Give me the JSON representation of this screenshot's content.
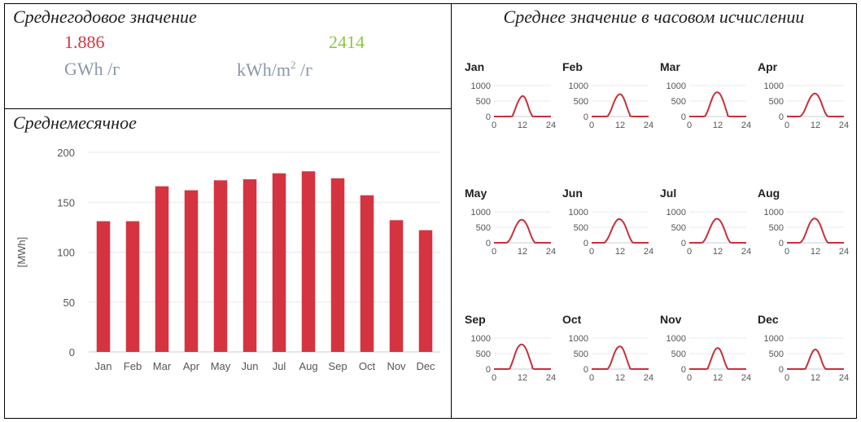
{
  "annual": {
    "title": "Среднегодовое значение",
    "energy_value": "1.886",
    "energy_unit": "GWh /г",
    "specific_value": "2414",
    "specific_unit_prefix": "kWh/m",
    "specific_unit_sup": "2",
    "specific_unit_suffix": " /г",
    "colors": {
      "energy": "#d63340",
      "specific": "#8dc63f",
      "unit": "#8a96a8"
    }
  },
  "monthly": {
    "title": "Среднемесячное"
  },
  "hourly": {
    "title": "Среднее значение в часовом исчислении"
  },
  "chart_data": [
    {
      "type": "bar",
      "categories": [
        "Jan",
        "Feb",
        "Mar",
        "Apr",
        "May",
        "Jun",
        "Jul",
        "Aug",
        "Sep",
        "Oct",
        "Nov",
        "Dec"
      ],
      "values": [
        131,
        131,
        166,
        162,
        172,
        173,
        179,
        181,
        174,
        157,
        132,
        122
      ],
      "ylabel": "[MWh]",
      "ylim": [
        0,
        200
      ],
      "yticks": [
        0,
        50,
        100,
        150,
        200
      ],
      "grid": true,
      "color": "#d63340"
    },
    {
      "type": "line",
      "panels": [
        {
          "title": "Jan",
          "x": [
            0,
            7,
            8,
            9,
            10,
            11,
            12,
            13,
            14,
            15,
            16,
            17,
            24
          ],
          "y": [
            0,
            0,
            60,
            250,
            450,
            590,
            660,
            610,
            430,
            200,
            40,
            0,
            0
          ]
        },
        {
          "title": "Feb",
          "x": [
            0,
            6,
            7,
            8,
            9,
            10,
            11,
            12,
            13,
            14,
            15,
            16,
            17,
            24
          ],
          "y": [
            0,
            0,
            40,
            180,
            380,
            560,
            680,
            720,
            660,
            500,
            280,
            80,
            0,
            0
          ]
        },
        {
          "title": "Mar",
          "x": [
            0,
            6,
            7,
            8,
            9,
            10,
            11,
            12,
            13,
            14,
            15,
            16,
            17,
            24
          ],
          "y": [
            0,
            0,
            60,
            230,
            450,
            650,
            760,
            780,
            720,
            560,
            340,
            110,
            0,
            0
          ]
        },
        {
          "title": "Apr",
          "x": [
            0,
            5,
            6,
            7,
            8,
            9,
            10,
            11,
            12,
            13,
            14,
            15,
            16,
            17,
            18,
            24
          ],
          "y": [
            0,
            0,
            30,
            130,
            300,
            480,
            630,
            720,
            740,
            680,
            540,
            340,
            140,
            20,
            0,
            0
          ]
        },
        {
          "title": "May",
          "x": [
            0,
            5,
            6,
            7,
            8,
            9,
            10,
            11,
            12,
            13,
            14,
            15,
            16,
            17,
            18,
            24
          ],
          "y": [
            0,
            0,
            40,
            150,
            320,
            500,
            640,
            730,
            740,
            680,
            550,
            360,
            160,
            30,
            0,
            0
          ]
        },
        {
          "title": "Jun",
          "x": [
            0,
            5,
            6,
            7,
            8,
            9,
            10,
            11,
            12,
            13,
            14,
            15,
            16,
            17,
            18,
            24
          ],
          "y": [
            0,
            0,
            50,
            170,
            340,
            520,
            660,
            750,
            760,
            700,
            570,
            380,
            180,
            40,
            0,
            0
          ]
        },
        {
          "title": "Jul",
          "x": [
            0,
            5,
            6,
            7,
            8,
            9,
            10,
            11,
            12,
            13,
            14,
            15,
            16,
            17,
            18,
            24
          ],
          "y": [
            0,
            0,
            40,
            160,
            340,
            520,
            670,
            760,
            770,
            710,
            580,
            390,
            180,
            40,
            0,
            0
          ]
        },
        {
          "title": "Aug",
          "x": [
            0,
            5,
            6,
            7,
            8,
            9,
            10,
            11,
            12,
            13,
            14,
            15,
            16,
            17,
            18,
            24
          ],
          "y": [
            0,
            0,
            30,
            140,
            320,
            520,
            680,
            770,
            780,
            720,
            580,
            380,
            170,
            30,
            0,
            0
          ]
        },
        {
          "title": "Sep",
          "x": [
            0,
            6,
            7,
            8,
            9,
            10,
            11,
            12,
            13,
            14,
            15,
            16,
            17,
            24
          ],
          "y": [
            0,
            0,
            80,
            280,
            510,
            690,
            780,
            790,
            720,
            560,
            340,
            120,
            0,
            0
          ]
        },
        {
          "title": "Oct",
          "x": [
            0,
            6,
            7,
            8,
            9,
            10,
            11,
            12,
            13,
            14,
            15,
            16,
            17,
            24
          ],
          "y": [
            0,
            0,
            30,
            170,
            390,
            580,
            700,
            730,
            670,
            500,
            270,
            70,
            0,
            0
          ]
        },
        {
          "title": "Nov",
          "x": [
            0,
            7,
            8,
            9,
            10,
            11,
            12,
            13,
            14,
            15,
            16,
            17,
            24
          ],
          "y": [
            0,
            0,
            70,
            270,
            480,
            630,
            680,
            620,
            440,
            210,
            40,
            0,
            0
          ]
        },
        {
          "title": "Dec",
          "x": [
            0,
            7,
            8,
            9,
            10,
            11,
            12,
            13,
            14,
            15,
            16,
            17,
            24
          ],
          "y": [
            0,
            0,
            50,
            230,
            430,
            580,
            630,
            570,
            400,
            180,
            30,
            0,
            0
          ]
        }
      ],
      "xlim": [
        0,
        24
      ],
      "xticks": [
        0,
        12,
        24
      ],
      "ylim": [
        0,
        1000
      ],
      "yticks": [
        0,
        500,
        1000
      ],
      "grid": true,
      "color": "#c8303c"
    }
  ]
}
